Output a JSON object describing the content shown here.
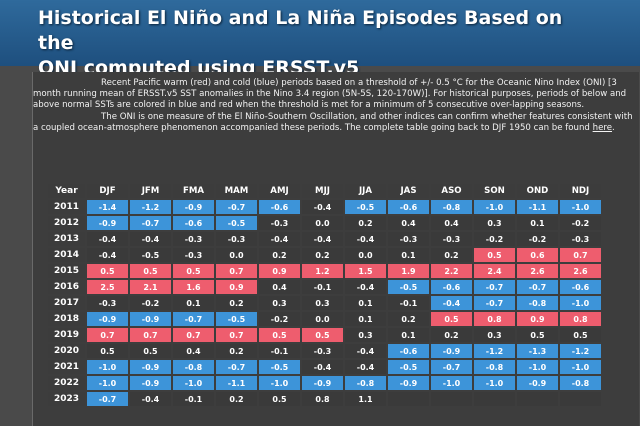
{
  "header": {
    "title_line1": "Historical El Niño and La Niña Episodes Based on the",
    "title_line2": "ONI computed using ERSST.v5"
  },
  "intro": {
    "para1": "Recent Pacific warm (red) and cold (blue) periods based on a threshold of +/- 0.5 °C for the Oceanic Nino Index (ONI) [3 month running mean of ERSST.v5 SST anomalies in the Nino 3.4 region (5N-5S, 120-170W)]. For historical purposes, periods of below and above normal SSTs are colored in blue and red when the threshold is met for a minimum of 5 consecutive over-lapping seasons.",
    "para2_before_link": "The ONI is one measure of the El Niño-Southern Oscillation, and other indices can confirm whether features consistent with a coupled ocean-atmosphere phenomenon accompanied these periods. The complete table going back to DJF 1950 can be found ",
    "link_label": "here",
    "para2_after_link": "."
  },
  "colors": {
    "warm": "#ee5d6e",
    "cold": "#3d94d9",
    "neutral": "#3a3a3a"
  },
  "table": {
    "headers": [
      "Year",
      "DJF",
      "JFM",
      "FMA",
      "MAM",
      "AMJ",
      "MJJ",
      "JJA",
      "JAS",
      "ASO",
      "SON",
      "OND",
      "NDJ"
    ],
    "rows": [
      {
        "year": "2011",
        "values": [
          "-1.4",
          "-1.2",
          "-0.9",
          "-0.7",
          "-0.6",
          "-0.4",
          "-0.5",
          "-0.6",
          "-0.8",
          "-1.0",
          "-1.1",
          "-1.0"
        ],
        "status": [
          "c",
          "c",
          "c",
          "c",
          "c",
          "n",
          "c",
          "c",
          "c",
          "c",
          "c",
          "c"
        ]
      },
      {
        "year": "2012",
        "values": [
          "-0.9",
          "-0.7",
          "-0.6",
          "-0.5",
          "-0.3",
          "0.0",
          "0.2",
          "0.4",
          "0.4",
          "0.3",
          "0.1",
          "-0.2"
        ],
        "status": [
          "c",
          "c",
          "c",
          "c",
          "n",
          "n",
          "n",
          "n",
          "n",
          "n",
          "n",
          "n"
        ]
      },
      {
        "year": "2013",
        "values": [
          "-0.4",
          "-0.4",
          "-0.3",
          "-0.3",
          "-0.4",
          "-0.4",
          "-0.4",
          "-0.3",
          "-0.3",
          "-0.2",
          "-0.2",
          "-0.3"
        ],
        "status": [
          "n",
          "n",
          "n",
          "n",
          "n",
          "n",
          "n",
          "n",
          "n",
          "n",
          "n",
          "n"
        ]
      },
      {
        "year": "2014",
        "values": [
          "-0.4",
          "-0.5",
          "-0.3",
          "0.0",
          "0.2",
          "0.2",
          "0.0",
          "0.1",
          "0.2",
          "0.5",
          "0.6",
          "0.7"
        ],
        "status": [
          "n",
          "n",
          "n",
          "n",
          "n",
          "n",
          "n",
          "n",
          "n",
          "w",
          "w",
          "w"
        ]
      },
      {
        "year": "2015",
        "values": [
          "0.5",
          "0.5",
          "0.5",
          "0.7",
          "0.9",
          "1.2",
          "1.5",
          "1.9",
          "2.2",
          "2.4",
          "2.6",
          "2.6"
        ],
        "status": [
          "w",
          "w",
          "w",
          "w",
          "w",
          "w",
          "w",
          "w",
          "w",
          "w",
          "w",
          "w"
        ]
      },
      {
        "year": "2016",
        "values": [
          "2.5",
          "2.1",
          "1.6",
          "0.9",
          "0.4",
          "-0.1",
          "-0.4",
          "-0.5",
          "-0.6",
          "-0.7",
          "-0.7",
          "-0.6"
        ],
        "status": [
          "w",
          "w",
          "w",
          "w",
          "n",
          "n",
          "n",
          "c",
          "c",
          "c",
          "c",
          "c"
        ]
      },
      {
        "year": "2017",
        "values": [
          "-0.3",
          "-0.2",
          "0.1",
          "0.2",
          "0.3",
          "0.3",
          "0.1",
          "-0.1",
          "-0.4",
          "-0.7",
          "-0.8",
          "-1.0"
        ],
        "status": [
          "n",
          "n",
          "n",
          "n",
          "n",
          "n",
          "n",
          "n",
          "c",
          "c",
          "c",
          "c"
        ]
      },
      {
        "year": "2018",
        "values": [
          "-0.9",
          "-0.9",
          "-0.7",
          "-0.5",
          "-0.2",
          "0.0",
          "0.1",
          "0.2",
          "0.5",
          "0.8",
          "0.9",
          "0.8"
        ],
        "status": [
          "c",
          "c",
          "c",
          "c",
          "n",
          "n",
          "n",
          "n",
          "w",
          "w",
          "w",
          "w"
        ]
      },
      {
        "year": "2019",
        "values": [
          "0.7",
          "0.7",
          "0.7",
          "0.7",
          "0.5",
          "0.5",
          "0.3",
          "0.1",
          "0.2",
          "0.3",
          "0.5",
          "0.5"
        ],
        "status": [
          "w",
          "w",
          "w",
          "w",
          "w",
          "w",
          "n",
          "n",
          "n",
          "n",
          "n",
          "n"
        ]
      },
      {
        "year": "2020",
        "values": [
          "0.5",
          "0.5",
          "0.4",
          "0.2",
          "-0.1",
          "-0.3",
          "-0.4",
          "-0.6",
          "-0.9",
          "-1.2",
          "-1.3",
          "-1.2"
        ],
        "status": [
          "n",
          "n",
          "n",
          "n",
          "n",
          "n",
          "n",
          "c",
          "c",
          "c",
          "c",
          "c"
        ]
      },
      {
        "year": "2021",
        "values": [
          "-1.0",
          "-0.9",
          "-0.8",
          "-0.7",
          "-0.5",
          "-0.4",
          "-0.4",
          "-0.5",
          "-0.7",
          "-0.8",
          "-1.0",
          "-1.0"
        ],
        "status": [
          "c",
          "c",
          "c",
          "c",
          "c",
          "n",
          "n",
          "c",
          "c",
          "c",
          "c",
          "c"
        ]
      },
      {
        "year": "2022",
        "values": [
          "-1.0",
          "-0.9",
          "-1.0",
          "-1.1",
          "-1.0",
          "-0.9",
          "-0.8",
          "-0.9",
          "-1.0",
          "-1.0",
          "-0.9",
          "-0.8"
        ],
        "status": [
          "c",
          "c",
          "c",
          "c",
          "c",
          "c",
          "c",
          "c",
          "c",
          "c",
          "c",
          "c"
        ]
      },
      {
        "year": "2023",
        "values": [
          "-0.7",
          "-0.4",
          "-0.1",
          "0.2",
          "0.5",
          "0.8",
          "1.1",
          "",
          "",
          "",
          "",
          ""
        ],
        "status": [
          "c",
          "n",
          "n",
          "n",
          "n",
          "n",
          "n",
          "n",
          "n",
          "n",
          "n",
          "n"
        ]
      }
    ]
  }
}
